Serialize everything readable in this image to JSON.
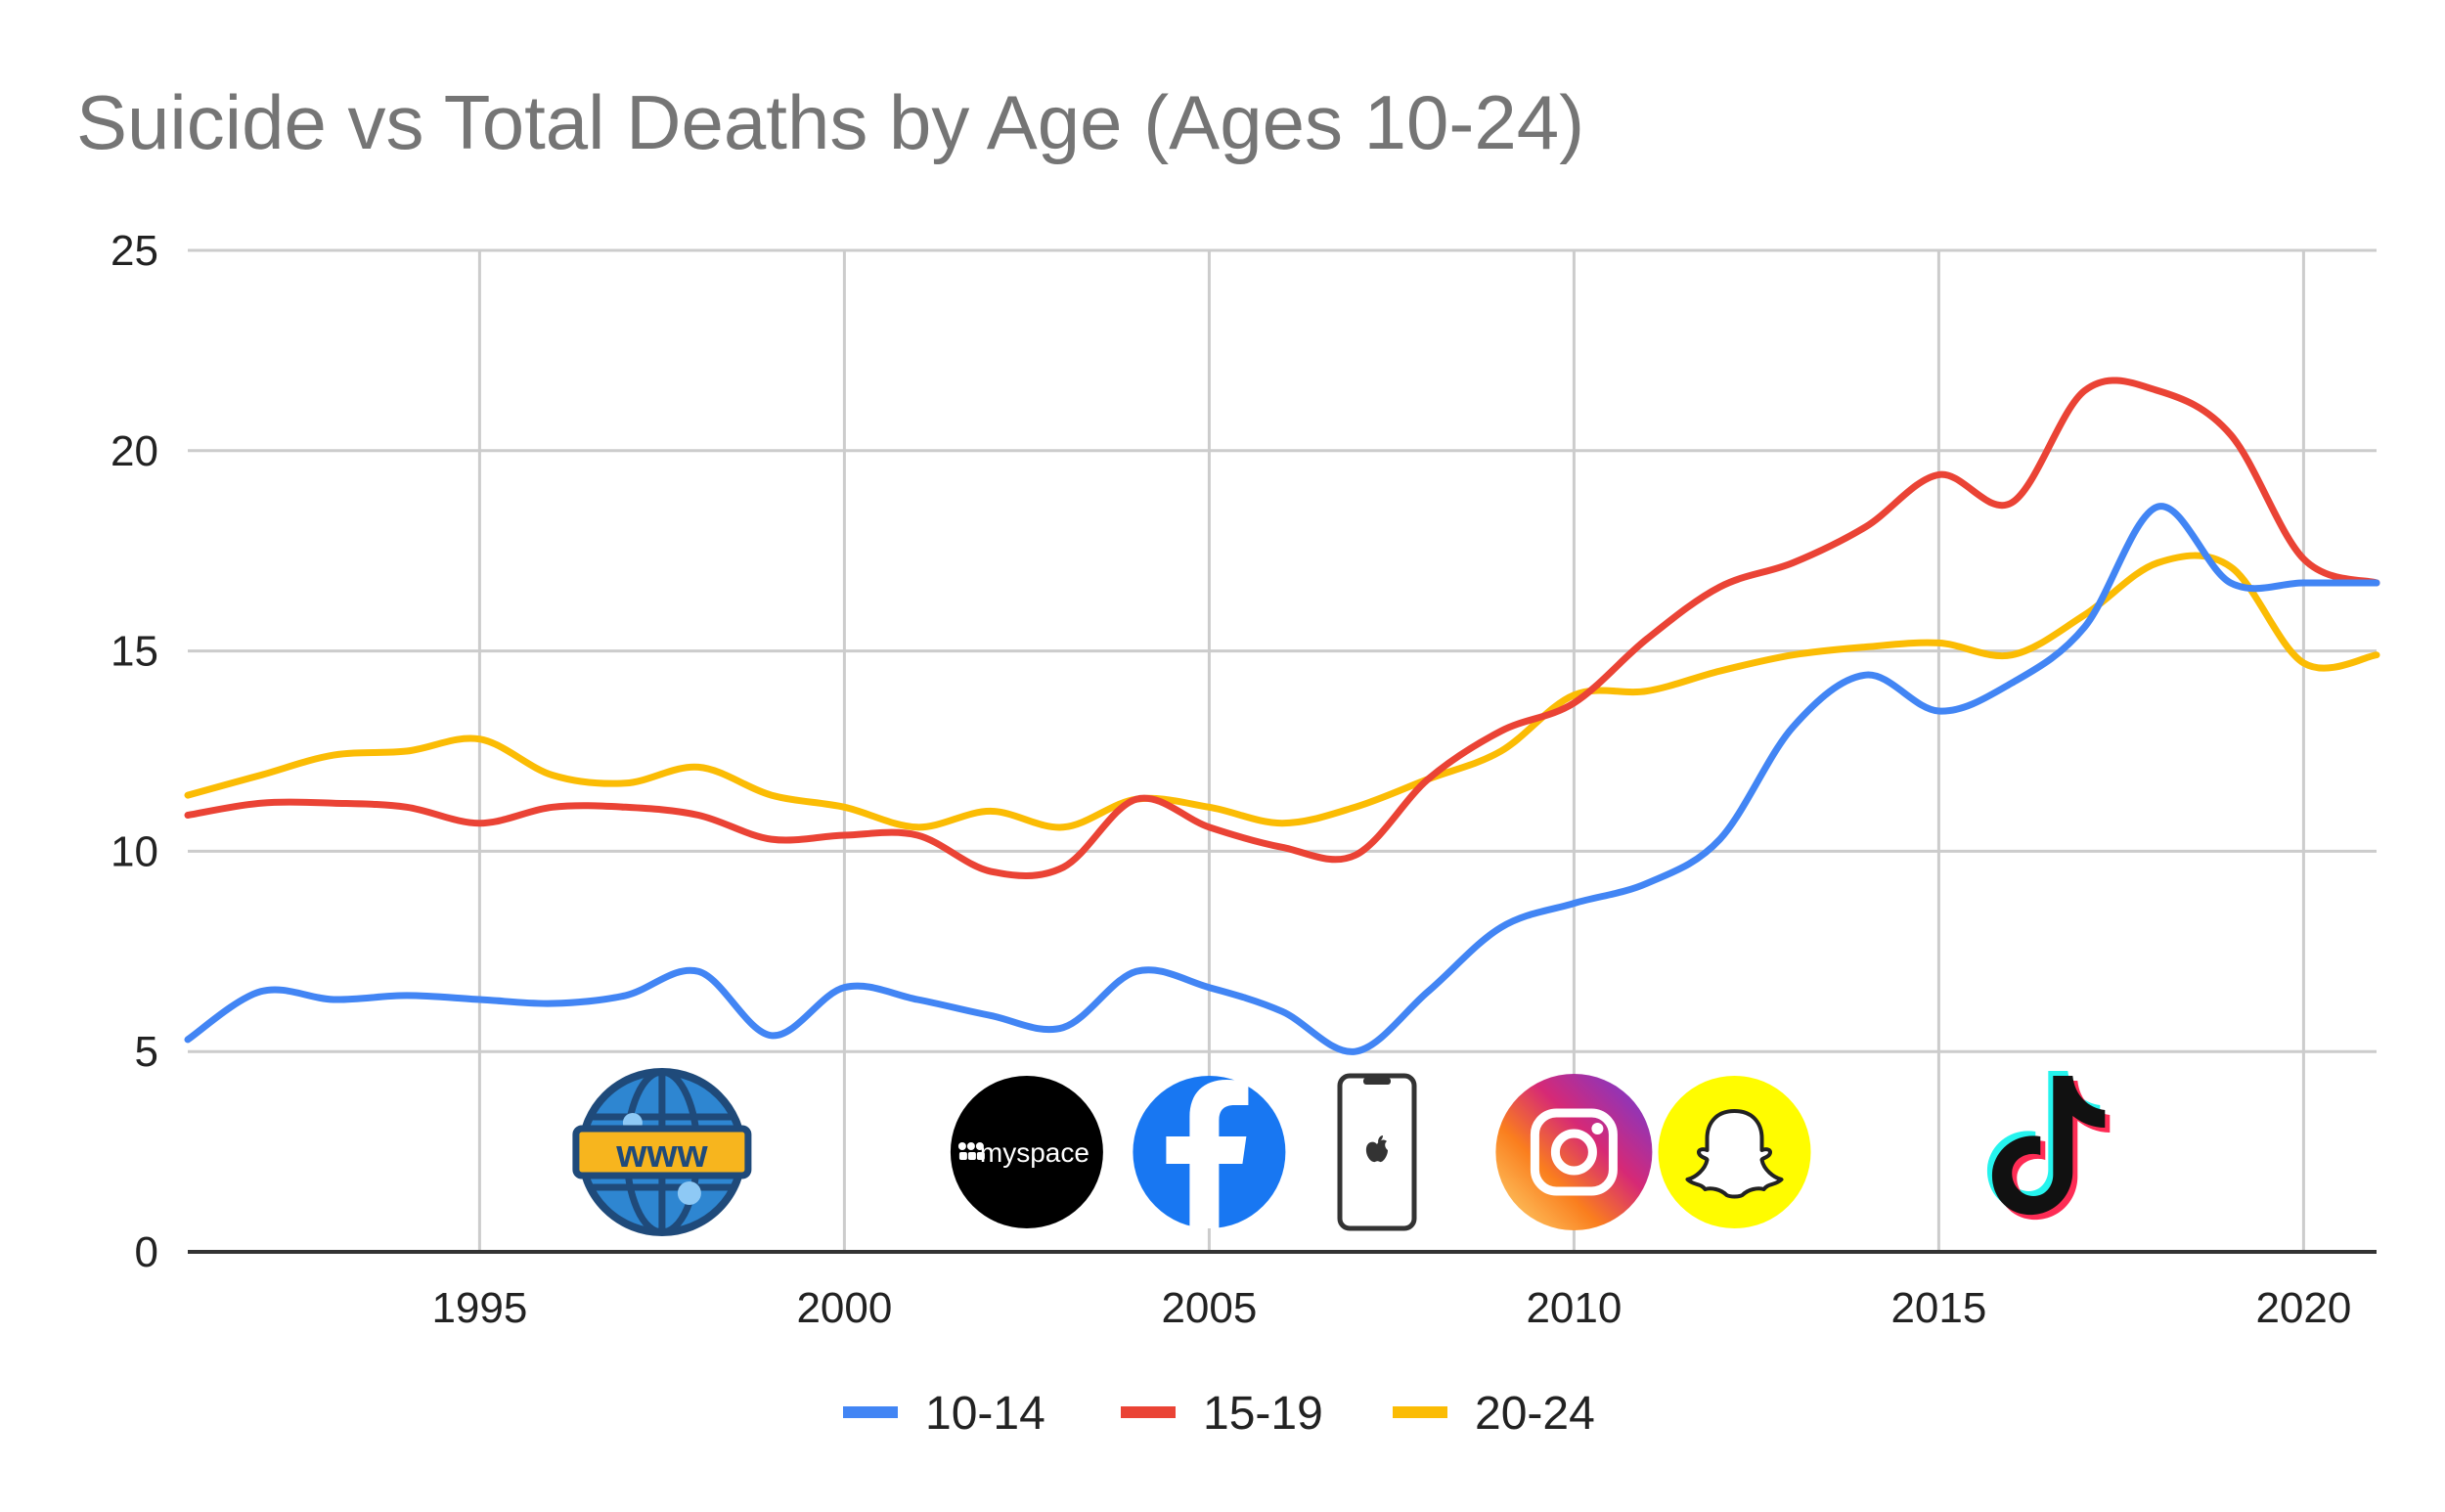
{
  "chart_data": {
    "type": "line",
    "title": "Suicide vs Total Deaths by Age (Ages 10-24)",
    "xlabel": "",
    "ylabel": "",
    "xlim": [
      1991,
      2021
    ],
    "ylim": [
      0,
      25
    ],
    "x_ticks": [
      1995,
      2000,
      2005,
      2010,
      2015,
      2020
    ],
    "y_ticks": [
      0,
      5,
      10,
      15,
      20,
      25
    ],
    "grid": true,
    "legend_position": "bottom",
    "x": [
      1991,
      1992,
      1993,
      1994,
      1995,
      1996,
      1997,
      1998,
      1999,
      2000,
      2001,
      2002,
      2003,
      2004,
      2005,
      2006,
      2007,
      2008,
      2009,
      2010,
      2011,
      2012,
      2013,
      2014,
      2015,
      2016,
      2017,
      2018,
      2019,
      2020,
      2021
    ],
    "series": [
      {
        "name": "10-14",
        "color": "#4285f4",
        "values": [
          5.3,
          6.5,
          6.3,
          6.4,
          6.3,
          6.2,
          6.4,
          7.0,
          5.4,
          6.6,
          6.3,
          5.9,
          5.6,
          7.0,
          6.6,
          6.0,
          5.0,
          6.5,
          8.1,
          8.7,
          9.2,
          10.3,
          13.1,
          14.4,
          13.5,
          14.2,
          15.6,
          18.6,
          16.7,
          16.7,
          16.7
        ]
      },
      {
        "name": "15-19",
        "color": "#ea4335",
        "values": [
          10.9,
          11.2,
          11.2,
          11.1,
          10.7,
          11.1,
          11.1,
          10.9,
          10.3,
          10.4,
          10.4,
          9.5,
          9.6,
          11.3,
          10.6,
          10.1,
          9.9,
          11.8,
          13.0,
          13.7,
          15.3,
          16.6,
          17.2,
          18.1,
          19.4,
          18.7,
          21.5,
          21.5,
          20.4,
          17.3,
          16.7
        ]
      },
      {
        "name": "20-24",
        "color": "#fbbc04",
        "values": [
          11.4,
          11.9,
          12.4,
          12.5,
          12.8,
          11.9,
          11.7,
          12.1,
          11.4,
          11.1,
          10.6,
          11.0,
          10.6,
          11.3,
          11.1,
          10.7,
          11.1,
          11.8,
          12.5,
          13.9,
          14.0,
          14.5,
          14.9,
          15.1,
          15.2,
          14.9,
          15.9,
          17.2,
          17.1,
          14.7,
          14.9
        ]
      }
    ]
  },
  "icons": [
    {
      "name": "www-globe-icon",
      "year": 1997.5
    },
    {
      "name": "myspace-icon",
      "year": 2002.5,
      "label": "myspace"
    },
    {
      "name": "facebook-icon",
      "year": 2005.0
    },
    {
      "name": "iphone-icon",
      "year": 2007.3
    },
    {
      "name": "instagram-icon",
      "year": 2010.0
    },
    {
      "name": "snapchat-icon",
      "year": 2012.2
    },
    {
      "name": "tiktok-icon",
      "year": 2016.5
    }
  ],
  "colors": {
    "grid": "#cccccc",
    "axis": "#333333",
    "title": "#757575"
  }
}
